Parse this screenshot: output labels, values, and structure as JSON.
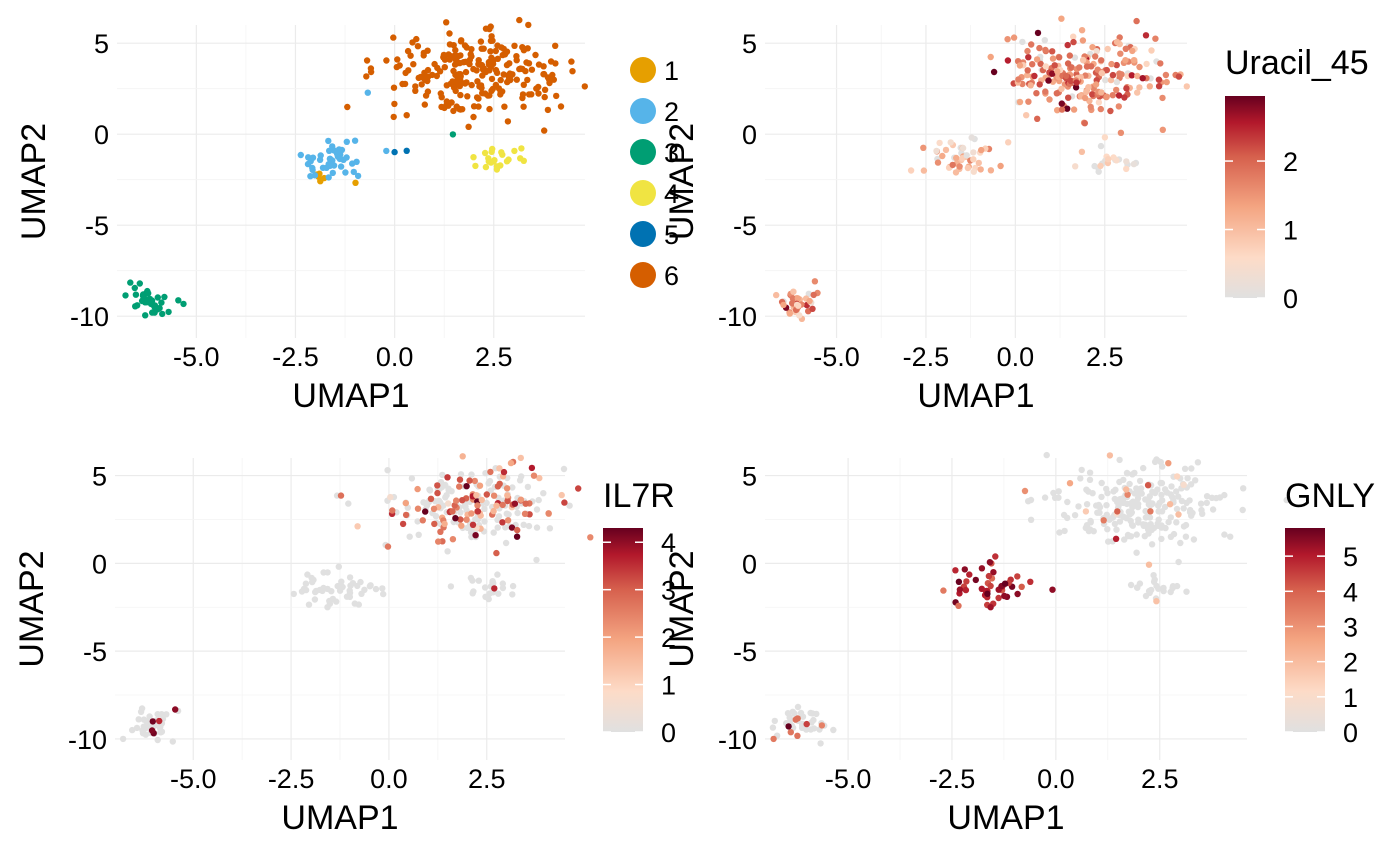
{
  "chart_data": [
    {
      "type": "scatter",
      "title": "",
      "xlabel": "UMAP1",
      "ylabel": "UMAP2",
      "x_ticks": [
        "-5.0",
        "-2.5",
        "0.0",
        "2.5"
      ],
      "x_tick_values": [
        -5,
        -2.5,
        0,
        2.5
      ],
      "y_ticks": [
        "5",
        "0",
        "-5",
        "-10"
      ],
      "y_tick_values": [
        5,
        0,
        -5,
        -10
      ],
      "xlim": [
        -7.0,
        4.8
      ],
      "ylim": [
        -11.2,
        6.0
      ],
      "grid": true,
      "legend": {
        "kind": "categorical",
        "position": "right",
        "title": "",
        "entries": [
          {
            "label": "1",
            "color": "#E69F00"
          },
          {
            "label": "2",
            "color": "#56B4E9"
          },
          {
            "label": "3",
            "color": "#009E73"
          },
          {
            "label": "4",
            "color": "#F0E442"
          },
          {
            "label": "5",
            "color": "#0072B2"
          },
          {
            "label": "6",
            "color": "#D55E00"
          }
        ]
      },
      "series": [
        {
          "name": "1",
          "clusters": [
            {
              "cx": -1.9,
              "cy": -2.3,
              "sx": 0.12,
              "sy": 0.1,
              "n": 6
            },
            {
              "cx": -0.9,
              "cy": -2.6,
              "sx": 0.05,
              "sy": 0.05,
              "n": 1
            }
          ]
        },
        {
          "name": "2",
          "clusters": [
            {
              "cx": -1.5,
              "cy": -1.4,
              "sx": 0.5,
              "sy": 0.55,
              "n": 42
            },
            {
              "cx": -0.65,
              "cy": 2.3,
              "sx": 0.04,
              "sy": 0.04,
              "n": 1
            }
          ]
        },
        {
          "name": "3",
          "clusters": [
            {
              "cx": -6.1,
              "cy": -9.2,
              "sx": 0.28,
              "sy": 0.4,
              "n": 42
            },
            {
              "cx": 1.45,
              "cy": 0.0,
              "sx": 0.04,
              "sy": 0.04,
              "n": 1
            }
          ]
        },
        {
          "name": "4",
          "clusters": [
            {
              "cx": 2.5,
              "cy": -1.4,
              "sx": 0.4,
              "sy": 0.35,
              "n": 22
            }
          ]
        },
        {
          "name": "5",
          "clusters": [
            {
              "cx": 0.0,
              "cy": -1.0,
              "sx": 0.04,
              "sy": 0.04,
              "n": 1
            },
            {
              "cx": 0.27,
              "cy": -0.95,
              "sx": 0.04,
              "sy": 0.04,
              "n": 1
            }
          ]
        },
        {
          "name": "6",
          "clusters": [
            {
              "cx": 2.0,
              "cy": 3.3,
              "sx": 1.1,
              "sy": 1.1,
              "n": 240
            }
          ]
        }
      ]
    },
    {
      "type": "scatter",
      "title": "",
      "xlabel": "UMAP1",
      "ylabel": "UMAP2",
      "x_ticks": [
        "-5.0",
        "-2.5",
        "0.0",
        "2.5"
      ],
      "x_tick_values": [
        -5,
        -2.5,
        0,
        2.5
      ],
      "y_ticks": [
        "5",
        "0",
        "-5",
        "-10"
      ],
      "y_tick_values": [
        5,
        0,
        -5,
        -10
      ],
      "xlim": [
        -7.0,
        4.8
      ],
      "ylim": [
        -11.2,
        6.0
      ],
      "grid": true,
      "color_variable": "Uracil_45",
      "legend": {
        "kind": "gradient",
        "position": "right",
        "title": "Uracil_45",
        "ticks": [
          "2",
          "1",
          "0"
        ],
        "tick_values": [
          2,
          1,
          0
        ],
        "range": [
          0,
          2.95
        ]
      },
      "series": [
        {
          "name": "",
          "clusters": [
            {
              "cx": 2.0,
              "cy": 3.3,
              "sx": 1.1,
              "sy": 1.1,
              "n": 240,
              "mean": 1.65,
              "sd": 0.55,
              "zero_frac": 0.05
            },
            {
              "cx": -1.5,
              "cy": -1.4,
              "sx": 0.5,
              "sy": 0.55,
              "n": 48,
              "mean": 0.9,
              "sd": 0.4,
              "zero_frac": 0.08
            },
            {
              "cx": 2.5,
              "cy": -1.4,
              "sx": 0.4,
              "sy": 0.35,
              "n": 22,
              "mean": 0.45,
              "sd": 0.3,
              "zero_frac": 0.4
            },
            {
              "cx": -6.1,
              "cy": -9.2,
              "sx": 0.28,
              "sy": 0.4,
              "n": 42,
              "mean": 1.3,
              "sd": 0.6,
              "zero_frac": 0.15
            }
          ]
        }
      ]
    },
    {
      "type": "scatter",
      "title": "",
      "xlabel": "UMAP1",
      "ylabel": "UMAP2",
      "x_ticks": [
        "-5.0",
        "-2.5",
        "0.0",
        "2.5"
      ],
      "x_tick_values": [
        -5,
        -2.5,
        0,
        2.5
      ],
      "y_ticks": [
        "5",
        "0",
        "-5",
        "-10"
      ],
      "y_tick_values": [
        5,
        0,
        -5,
        -10
      ],
      "xlim": [
        -7.0,
        4.5
      ],
      "ylim": [
        -11.2,
        6.0
      ],
      "grid": true,
      "color_variable": "IL7R",
      "legend": {
        "kind": "gradient",
        "position": "right",
        "title": "IL7R",
        "ticks": [
          "4",
          "3",
          "2",
          "1",
          "0"
        ],
        "tick_values": [
          4,
          3,
          2,
          1,
          0
        ],
        "range": [
          0,
          4.3
        ]
      },
      "series": [
        {
          "name": "",
          "clusters": [
            {
              "cx": 2.0,
              "cy": 3.3,
              "sx": 1.1,
              "sy": 1.1,
              "n": 240,
              "mean": 2.6,
              "sd": 0.8,
              "zero_frac": 0.55
            },
            {
              "cx": -1.5,
              "cy": -1.4,
              "sx": 0.5,
              "sy": 0.55,
              "n": 48,
              "mean": 0,
              "sd": 0,
              "zero_frac": 1.0
            },
            {
              "cx": 2.5,
              "cy": -1.4,
              "sx": 0.4,
              "sy": 0.35,
              "n": 22,
              "mean": 3.0,
              "sd": 0.3,
              "zero_frac": 0.93
            },
            {
              "cx": -6.1,
              "cy": -9.2,
              "sx": 0.28,
              "sy": 0.4,
              "n": 42,
              "mean": 4.0,
              "sd": 0.3,
              "zero_frac": 0.88
            }
          ]
        }
      ]
    },
    {
      "type": "scatter",
      "title": "",
      "xlabel": "UMAP1",
      "ylabel": "UMAP2",
      "x_ticks": [
        "-5.0",
        "-2.5",
        "0.0",
        "2.5"
      ],
      "x_tick_values": [
        -5,
        -2.5,
        0,
        2.5
      ],
      "y_ticks": [
        "5",
        "0",
        "-5",
        "-10"
      ],
      "y_tick_values": [
        5,
        0,
        -5,
        -10
      ],
      "xlim": [
        -7.0,
        4.6
      ],
      "ylim": [
        -11.2,
        6.0
      ],
      "grid": true,
      "color_variable": "GNLY",
      "legend": {
        "kind": "gradient",
        "position": "right",
        "title": "GNLY",
        "ticks": [
          "5",
          "4",
          "3",
          "2",
          "1",
          "0"
        ],
        "tick_values": [
          5,
          4,
          3,
          2,
          1,
          0
        ],
        "range": [
          0,
          5.8
        ]
      },
      "series": [
        {
          "name": "",
          "clusters": [
            {
              "cx": 2.0,
              "cy": 3.3,
              "sx": 1.1,
              "sy": 1.1,
              "n": 240,
              "mean": 2.5,
              "sd": 1.0,
              "zero_frac": 0.9
            },
            {
              "cx": -1.5,
              "cy": -1.4,
              "sx": 0.5,
              "sy": 0.55,
              "n": 48,
              "mean": 4.9,
              "sd": 0.6,
              "zero_frac": 0.0
            },
            {
              "cx": 2.5,
              "cy": -1.4,
              "sx": 0.4,
              "sy": 0.35,
              "n": 22,
              "mean": 2.0,
              "sd": 0.3,
              "zero_frac": 0.93
            },
            {
              "cx": -6.1,
              "cy": -9.2,
              "sx": 0.28,
              "sy": 0.4,
              "n": 42,
              "mean": 4.5,
              "sd": 0.8,
              "zero_frac": 0.85
            }
          ]
        }
      ]
    }
  ]
}
